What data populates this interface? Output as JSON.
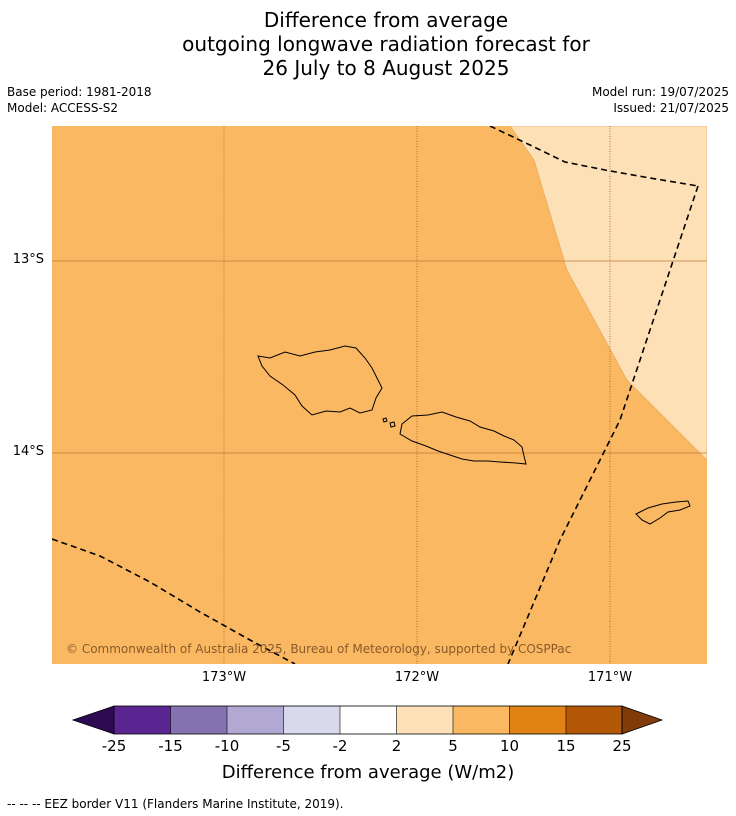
{
  "title": {
    "line1": "Difference from average",
    "line2": "outgoing longwave radiation forecast for",
    "line3": "26 July to 8 August 2025"
  },
  "meta": {
    "base_period": "Base period: 1981-2018",
    "model": "Model: ACCESS-S2",
    "model_run": "Model run: 19/07/2025",
    "issued": "Issued: 21/07/2025"
  },
  "map": {
    "lat_labels": [
      "13°S",
      "14°S"
    ],
    "lon_labels": [
      "173°W",
      "172°W",
      "171°W"
    ],
    "copyright": "© Commonwealth of Australia 2025, Bureau of Meteorology, supported by COSPPac",
    "colors": {
      "anomaly_2_to_5": "#fde0b6",
      "anomaly_5_to_10": "#fbb862",
      "grid": "#a0622e"
    }
  },
  "colorbar": {
    "ticks": [
      "-25",
      "-15",
      "-10",
      "-5",
      "-2",
      "2",
      "5",
      "10",
      "15",
      "25"
    ],
    "colors": [
      "#2d0a52",
      "#5b2591",
      "#8573b1",
      "#b1a9d4",
      "#d9d9ec",
      "#ffffff",
      "#fde0b6",
      "#fbb862",
      "#e08214",
      "#b35806",
      "#7f3b08"
    ],
    "label": "Difference from average (W/m2)"
  },
  "footer": "--  --  -- EEZ border V11 (Flanders Marine Institute, 2019)."
}
